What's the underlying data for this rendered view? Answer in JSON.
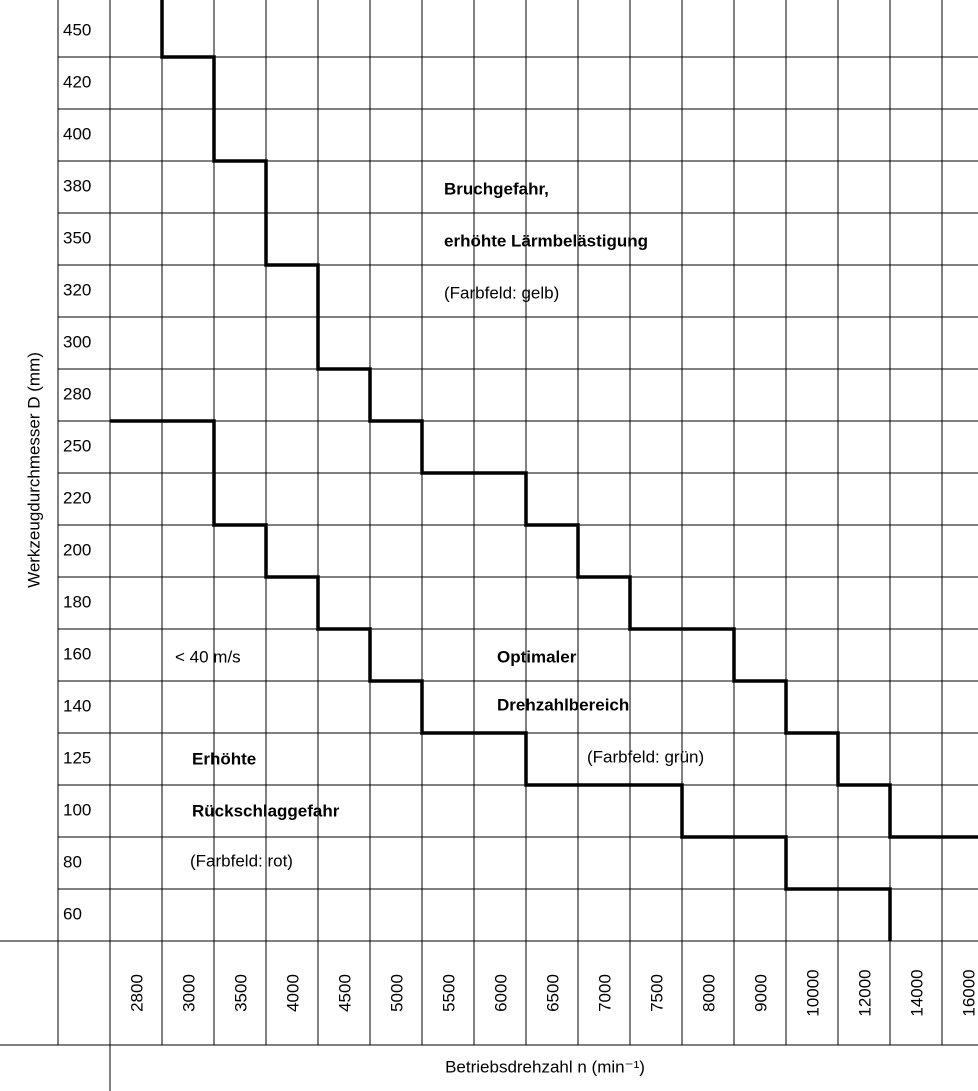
{
  "y_axis": {
    "title": "Werkzeugdurchmesser D (mm)",
    "labels": [
      "450",
      "420",
      "400",
      "380",
      "350",
      "320",
      "300",
      "280",
      "250",
      "220",
      "200",
      "180",
      "160",
      "140",
      "125",
      "100",
      "80",
      "60"
    ]
  },
  "x_axis": {
    "title": "Betriebsdrehzahl n (min⁻¹)",
    "labels": [
      "2800",
      "3000",
      "3500",
      "4000",
      "4500",
      "5000",
      "5500",
      "6000",
      "6500",
      "7000",
      "7500",
      "8000",
      "9000",
      "10000",
      "12000",
      "14000",
      "16000"
    ]
  },
  "regions": [
    {
      "lines": [
        "Bruchgefahr,",
        "erhöhte Lärmbelästigung",
        "(Farbfeld: gelb)"
      ]
    },
    {
      "lines": [
        "< 40 m/s"
      ]
    },
    {
      "lines": [
        "Optimaler",
        "Drehzahlbereich",
        "(Farbfeld: grün)"
      ]
    },
    {
      "lines": [
        "Erhöhte",
        "Rückschlaggefahr",
        "(Farbfeld: rot)"
      ]
    }
  ]
}
